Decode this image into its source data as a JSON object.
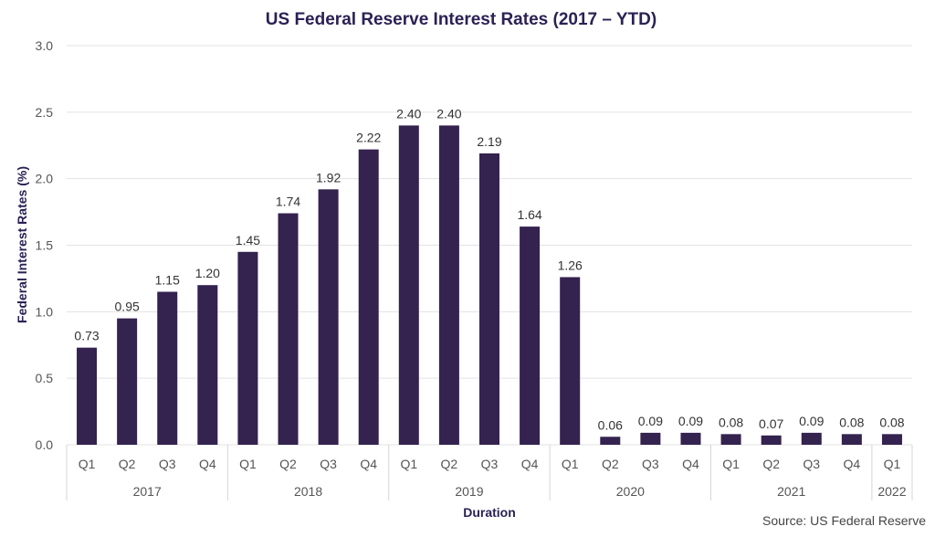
{
  "chart_data": {
    "type": "bar",
    "title": "US Federal Reserve Interest Rates (2017 – YTD)",
    "xlabel": "Duration",
    "ylabel": "Federal Interest Rates (%)",
    "ylim": [
      0,
      3.0
    ],
    "yticks": [
      "0.0",
      "0.5",
      "1.0",
      "1.5",
      "2.0",
      "2.5",
      "3.0"
    ],
    "grid": true,
    "bar_color": "#34224f",
    "categories": [
      "Q1",
      "Q2",
      "Q3",
      "Q4",
      "Q1",
      "Q2",
      "Q3",
      "Q4",
      "Q1",
      "Q2",
      "Q3",
      "Q4",
      "Q1",
      "Q2",
      "Q3",
      "Q4",
      "Q1",
      "Q2",
      "Q3",
      "Q4",
      "Q1"
    ],
    "groups": [
      {
        "label": "2017",
        "count": 4
      },
      {
        "label": "2018",
        "count": 4
      },
      {
        "label": "2019",
        "count": 4
      },
      {
        "label": "2020",
        "count": 4
      },
      {
        "label": "2021",
        "count": 4
      },
      {
        "label": "2022",
        "count": 1
      }
    ],
    "values": [
      0.73,
      0.95,
      1.15,
      1.2,
      1.45,
      1.74,
      1.92,
      2.22,
      2.4,
      2.4,
      2.19,
      1.64,
      1.26,
      0.06,
      0.09,
      0.09,
      0.08,
      0.07,
      0.09,
      0.08,
      0.08
    ],
    "data_labels": [
      "0.73",
      "0.95",
      "1.15",
      "1.20",
      "1.45",
      "1.74",
      "1.92",
      "2.22",
      "2.40",
      "2.40",
      "2.19",
      "1.64",
      "1.26",
      "0.06",
      "0.09",
      "0.09",
      "0.08",
      "0.07",
      "0.09",
      "0.08",
      "0.08"
    ],
    "source": "Source: US Federal Reserve"
  }
}
